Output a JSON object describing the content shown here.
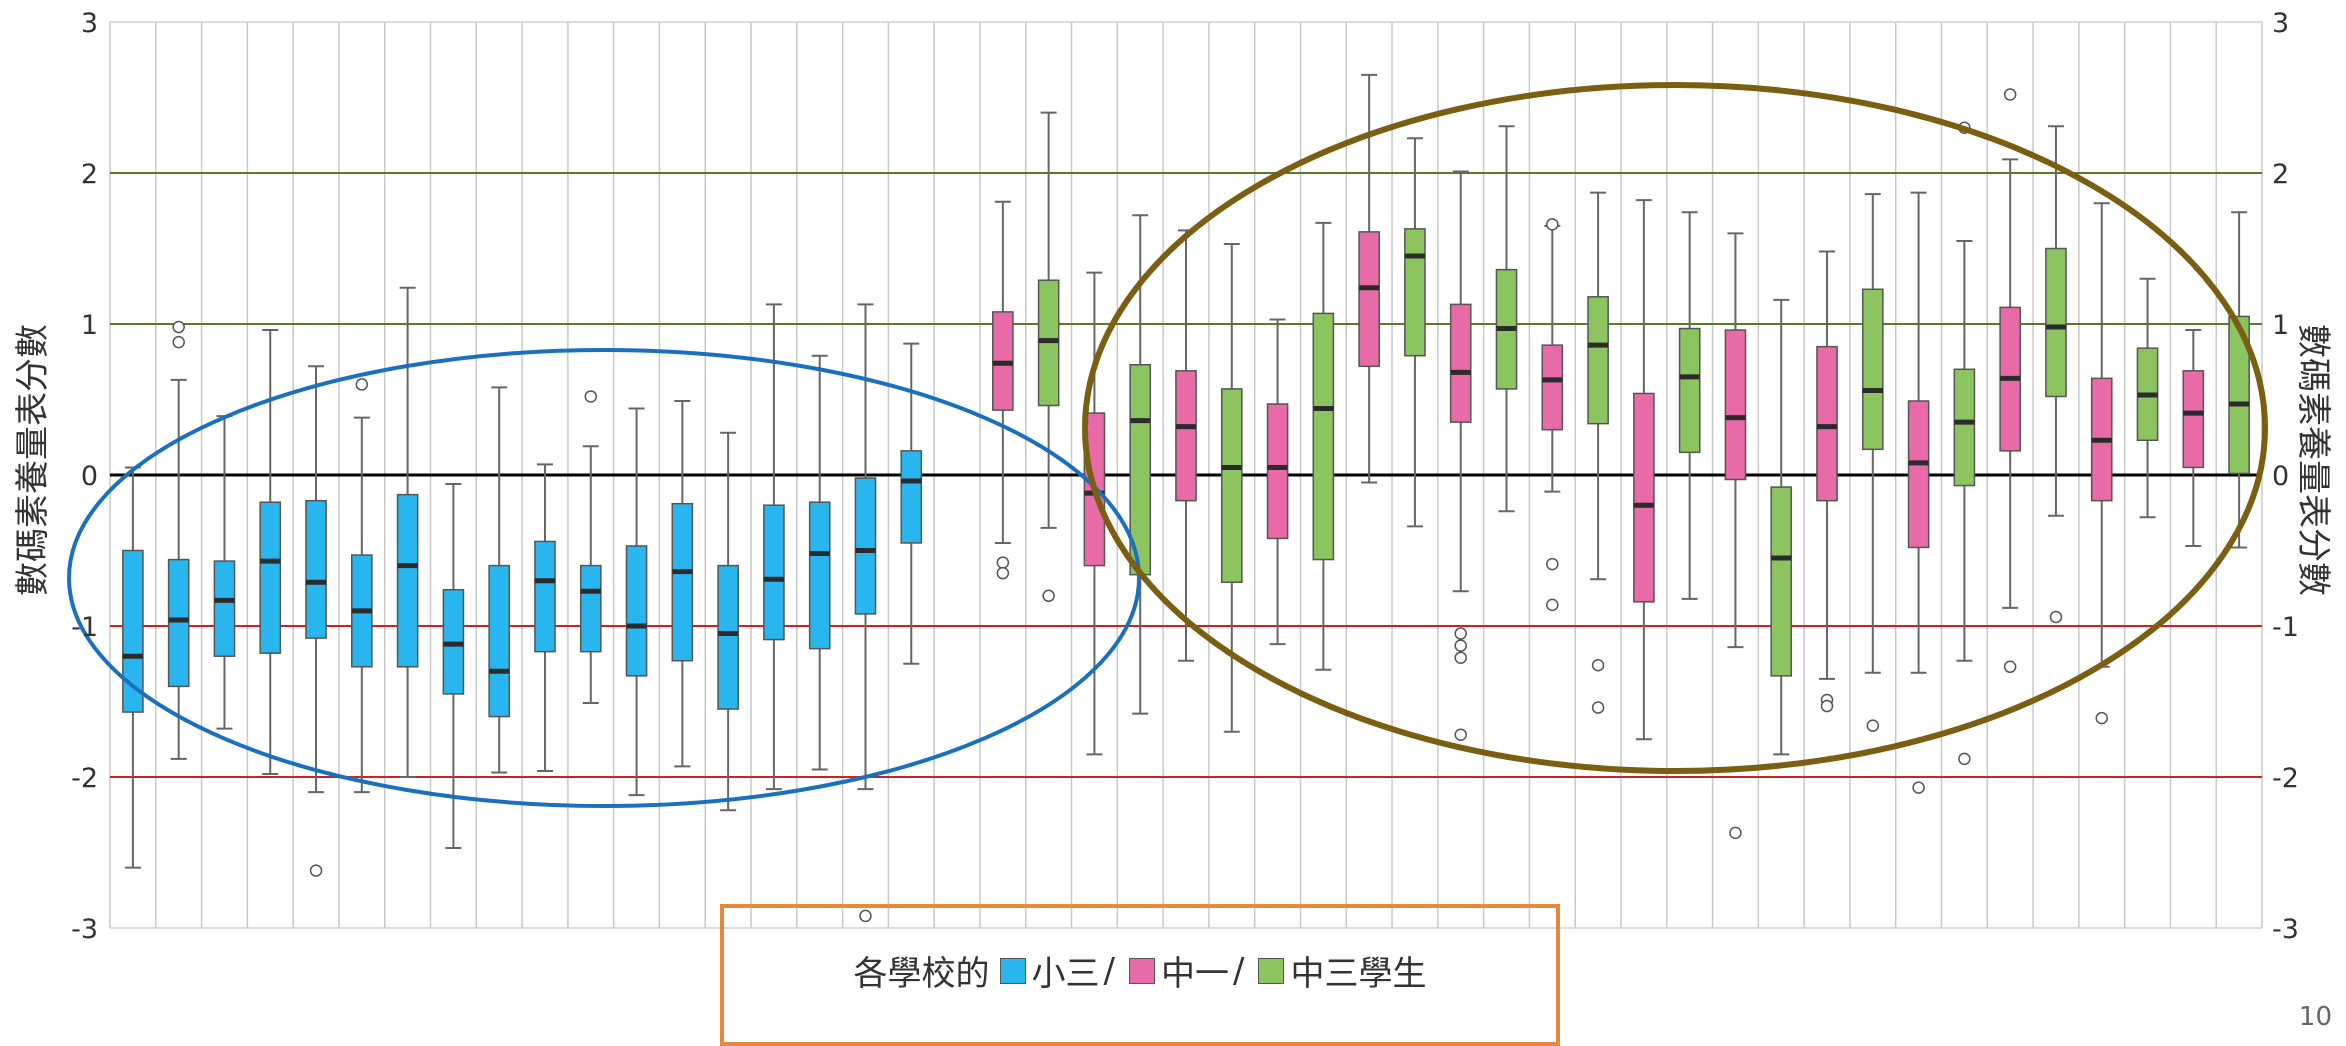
{
  "chart_data": {
    "type": "boxplot",
    "ylabel": "數碼素養量表分數",
    "ylim": [
      -3,
      3
    ],
    "yticks": [
      "-3",
      "-2",
      "-1",
      "0",
      "1",
      "2",
      "3"
    ],
    "legend": {
      "prefix": "各學校的",
      "items": [
        "小三",
        "中一",
        "中三學生"
      ],
      "separators": [
        "/",
        "/"
      ]
    },
    "colors": {
      "小三": "#29b6ee",
      "中一": "#e86aa6",
      "中三學生": "#8cc460"
    },
    "reference_lines": [
      {
        "value": 2,
        "color": "#5a7a2a"
      },
      {
        "value": 1,
        "color": "#5a7a2a"
      },
      {
        "value": 0,
        "color": "#000000"
      },
      {
        "value": -1,
        "color": "#cc2222"
      },
      {
        "value": -2,
        "color": "#cc2222"
      }
    ],
    "groups": [
      {
        "name": "小三",
        "boxes": [
          {
            "slot": 0,
            "min": -2.6,
            "q1": -1.57,
            "median": -1.2,
            "q3": -0.5,
            "max": 0.05,
            "outliers": []
          },
          {
            "slot": 1,
            "min": -1.88,
            "q1": -1.4,
            "median": -0.96,
            "q3": -0.56,
            "max": 0.63,
            "outliers": [
              0.88,
              0.98
            ]
          },
          {
            "slot": 2,
            "min": -1.68,
            "q1": -1.2,
            "median": -0.83,
            "q3": -0.57,
            "max": 0.39,
            "outliers": []
          },
          {
            "slot": 3,
            "min": -1.98,
            "q1": -1.18,
            "median": -0.57,
            "q3": -0.18,
            "max": 0.96,
            "outliers": []
          },
          {
            "slot": 4,
            "min": -2.1,
            "q1": -1.08,
            "median": -0.71,
            "q3": -0.17,
            "max": 0.72,
            "outliers": [
              -2.62
            ]
          },
          {
            "slot": 5,
            "min": -2.1,
            "q1": -1.27,
            "median": -0.9,
            "q3": -0.53,
            "max": 0.38,
            "outliers": [
              0.6
            ]
          },
          {
            "slot": 6,
            "min": -2.0,
            "q1": -1.27,
            "median": -0.6,
            "q3": -0.13,
            "max": 1.24,
            "outliers": []
          },
          {
            "slot": 7,
            "min": -2.47,
            "q1": -1.45,
            "median": -1.12,
            "q3": -0.76,
            "max": -0.06,
            "outliers": []
          },
          {
            "slot": 8,
            "min": -1.97,
            "q1": -1.6,
            "median": -1.3,
            "q3": -0.6,
            "max": 0.58,
            "outliers": []
          },
          {
            "slot": 9,
            "min": -1.96,
            "q1": -1.17,
            "median": -0.7,
            "q3": -0.44,
            "max": 0.07,
            "outliers": []
          },
          {
            "slot": 10,
            "min": -1.51,
            "q1": -1.17,
            "median": -0.77,
            "q3": -0.6,
            "max": 0.19,
            "outliers": [
              0.52
            ]
          },
          {
            "slot": 11,
            "min": -2.12,
            "q1": -1.33,
            "median": -1.0,
            "q3": -0.47,
            "max": 0.44,
            "outliers": []
          },
          {
            "slot": 12,
            "min": -1.93,
            "q1": -1.23,
            "median": -0.64,
            "q3": -0.19,
            "max": 0.49,
            "outliers": []
          },
          {
            "slot": 13,
            "min": -2.22,
            "q1": -1.55,
            "median": -1.05,
            "q3": -0.6,
            "max": 0.28,
            "outliers": []
          },
          {
            "slot": 14,
            "min": -2.08,
            "q1": -1.09,
            "median": -0.69,
            "q3": -0.2,
            "max": 1.13,
            "outliers": []
          },
          {
            "slot": 15,
            "min": -1.95,
            "q1": -1.15,
            "median": -0.52,
            "q3": -0.18,
            "max": 0.79,
            "outliers": []
          },
          {
            "slot": 16,
            "min": -2.08,
            "q1": -0.92,
            "median": -0.5,
            "q3": -0.02,
            "max": 1.13,
            "outliers": [
              -2.92
            ]
          },
          {
            "slot": 17,
            "min": -1.25,
            "q1": -0.45,
            "median": -0.04,
            "q3": 0.16,
            "max": 0.87,
            "outliers": []
          }
        ]
      },
      {
        "name": "中一",
        "boxes": [
          {
            "slot": 19,
            "min": -0.45,
            "q1": 0.43,
            "median": 0.74,
            "q3": 1.08,
            "max": 1.81,
            "outliers": [
              -0.58,
              -0.65
            ]
          },
          {
            "slot": 21,
            "min": -1.85,
            "q1": -0.6,
            "median": -0.12,
            "q3": 0.41,
            "max": 1.34,
            "outliers": []
          },
          {
            "slot": 23,
            "min": -1.23,
            "q1": -0.17,
            "median": 0.32,
            "q3": 0.69,
            "max": 1.62,
            "outliers": []
          },
          {
            "slot": 25,
            "min": -1.12,
            "q1": -0.42,
            "median": 0.05,
            "q3": 0.47,
            "max": 1.03,
            "outliers": []
          },
          {
            "slot": 27,
            "min": -0.05,
            "q1": 0.72,
            "median": 1.24,
            "q3": 1.61,
            "max": 2.65,
            "outliers": []
          },
          {
            "slot": 29,
            "min": -0.77,
            "q1": 0.35,
            "median": 0.68,
            "q3": 1.13,
            "max": 2.01,
            "outliers": [
              -1.05,
              -1.13,
              -1.21,
              -1.72
            ]
          },
          {
            "slot": 31,
            "min": -0.11,
            "q1": 0.3,
            "median": 0.63,
            "q3": 0.86,
            "max": 1.65,
            "outliers": [
              1.66,
              -0.59,
              -0.86
            ]
          },
          {
            "slot": 33,
            "min": -1.75,
            "q1": -0.84,
            "median": -0.2,
            "q3": 0.54,
            "max": 1.82,
            "outliers": []
          },
          {
            "slot": 35,
            "min": -1.14,
            "q1": -0.03,
            "median": 0.38,
            "q3": 0.96,
            "max": 1.6,
            "outliers": [
              -2.37
            ]
          },
          {
            "slot": 37,
            "min": -1.35,
            "q1": -0.17,
            "median": 0.32,
            "q3": 0.85,
            "max": 1.48,
            "outliers": [
              -1.49,
              -1.53
            ]
          },
          {
            "slot": 39,
            "min": -1.31,
            "q1": -0.48,
            "median": 0.08,
            "q3": 0.49,
            "max": 1.87,
            "outliers": [
              -2.07
            ]
          },
          {
            "slot": 41,
            "min": -0.88,
            "q1": 0.16,
            "median": 0.64,
            "q3": 1.11,
            "max": 2.09,
            "outliers": [
              2.52,
              -1.27
            ]
          },
          {
            "slot": 43,
            "min": -1.27,
            "q1": -0.17,
            "median": 0.23,
            "q3": 0.64,
            "max": 1.8,
            "outliers": [
              -1.61
            ]
          },
          {
            "slot": 45,
            "min": -0.47,
            "q1": 0.05,
            "median": 0.41,
            "q3": 0.69,
            "max": 0.96,
            "outliers": []
          }
        ]
      },
      {
        "name": "中三學生",
        "boxes": [
          {
            "slot": 20,
            "min": -0.35,
            "q1": 0.46,
            "median": 0.89,
            "q3": 1.29,
            "max": 2.4,
            "outliers": [
              -0.8
            ]
          },
          {
            "slot": 22,
            "min": -1.58,
            "q1": -0.66,
            "median": 0.36,
            "q3": 0.73,
            "max": 1.72,
            "outliers": []
          },
          {
            "slot": 24,
            "min": -1.7,
            "q1": -0.71,
            "median": 0.05,
            "q3": 0.57,
            "max": 1.53,
            "outliers": []
          },
          {
            "slot": 26,
            "min": -1.29,
            "q1": -0.56,
            "median": 0.44,
            "q3": 1.07,
            "max": 1.67,
            "outliers": []
          },
          {
            "slot": 28,
            "min": -0.34,
            "q1": 0.79,
            "median": 1.45,
            "q3": 1.63,
            "max": 2.23,
            "outliers": []
          },
          {
            "slot": 30,
            "min": -0.24,
            "q1": 0.57,
            "median": 0.97,
            "q3": 1.36,
            "max": 2.31,
            "outliers": []
          },
          {
            "slot": 32,
            "min": -0.69,
            "q1": 0.34,
            "median": 0.86,
            "q3": 1.18,
            "max": 1.87,
            "outliers": [
              -1.26,
              -1.54
            ]
          },
          {
            "slot": 34,
            "min": -0.82,
            "q1": 0.15,
            "median": 0.65,
            "q3": 0.97,
            "max": 1.74,
            "outliers": []
          },
          {
            "slot": 36,
            "min": -1.85,
            "q1": -1.33,
            "median": -0.55,
            "q3": -0.08,
            "max": 1.16,
            "outliers": []
          },
          {
            "slot": 38,
            "min": -1.31,
            "q1": 0.17,
            "median": 0.56,
            "q3": 1.23,
            "max": 1.86,
            "outliers": [
              -1.66
            ]
          },
          {
            "slot": 40,
            "min": -1.23,
            "q1": -0.07,
            "median": 0.35,
            "q3": 0.7,
            "max": 1.55,
            "outliers": [
              2.3,
              -1.88
            ]
          },
          {
            "slot": 42,
            "min": -0.27,
            "q1": 0.52,
            "median": 0.98,
            "q3": 1.5,
            "max": 2.31,
            "outliers": [
              -0.94
            ]
          },
          {
            "slot": 44,
            "min": -0.28,
            "q1": 0.23,
            "median": 0.53,
            "q3": 0.84,
            "max": 1.3,
            "outliers": []
          },
          {
            "slot": 46,
            "min": -0.48,
            "q1": 0.01,
            "median": 0.47,
            "q3": 1.05,
            "max": 1.74,
            "outliers": []
          }
        ]
      }
    ],
    "annotations": [
      {
        "type": "ellipse",
        "color": "#1a6fbf",
        "encloses": "小三"
      },
      {
        "type": "ellipse",
        "color": "#7a5e12",
        "encloses": "中一 / 中三學生"
      }
    ]
  },
  "page": {
    "number": "10"
  }
}
